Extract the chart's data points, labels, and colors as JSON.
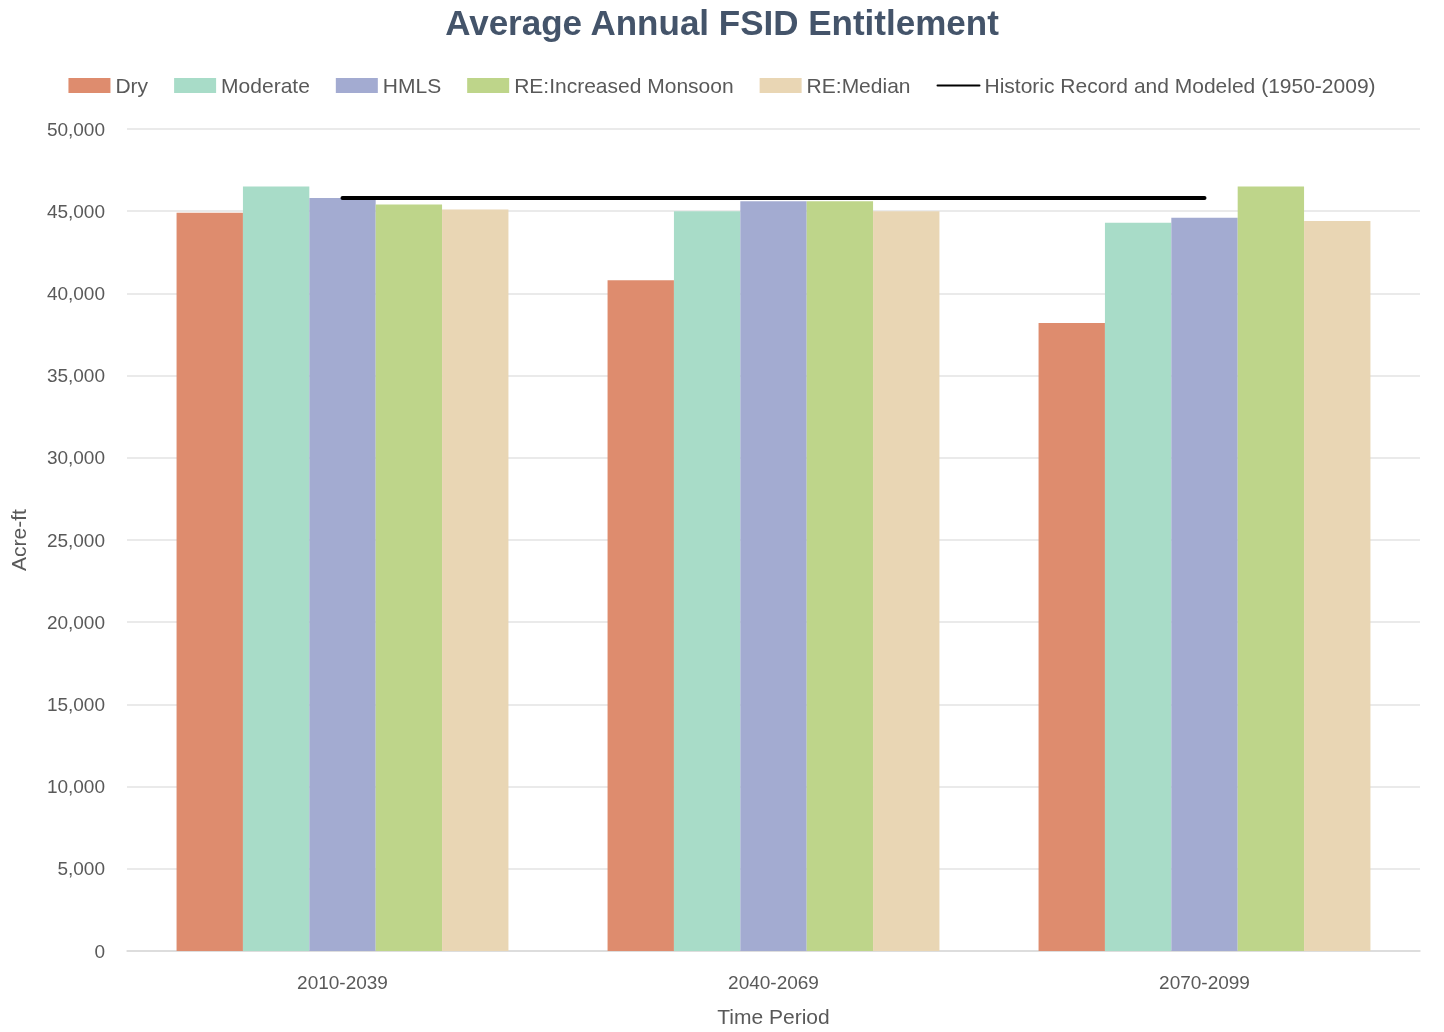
{
  "chart_data": {
    "type": "bar",
    "title": "Average Annual FSID Entitlement",
    "xlabel": "Time Period",
    "ylabel": "Acre-ft",
    "categories": [
      "2010-2039",
      "2040-2069",
      "2070-2099"
    ],
    "series": [
      {
        "name": "Dry",
        "color": "#de8c6e",
        "values": [
          44900,
          40800,
          38200
        ]
      },
      {
        "name": "Moderate",
        "color": "#a8dcc8",
        "values": [
          46500,
          45000,
          44300
        ]
      },
      {
        "name": "HMLS",
        "color": "#a3abd1",
        "values": [
          45800,
          45600,
          44600
        ]
      },
      {
        "name": "RE:Increased Monsoon",
        "color": "#bed58a",
        "values": [
          45400,
          45600,
          46500
        ]
      },
      {
        "name": "RE:Median",
        "color": "#e9d6b4",
        "values": [
          45100,
          45000,
          44400
        ]
      },
      {
        "name": "Historic Record and Modeled (1950-2009)",
        "type": "line",
        "color": "#000000",
        "values": [
          45800,
          45800,
          45800
        ]
      }
    ],
    "ylim": [
      0,
      50000
    ],
    "yticks": [
      0,
      {
        "value": 5000,
        "label": "5,000"
      },
      {
        "value": 10000,
        "label": "10,000"
      },
      {
        "value": 15000,
        "label": "15,000"
      },
      {
        "value": 20000,
        "label": "20,000"
      },
      {
        "value": 25000,
        "label": "25,000"
      },
      {
        "value": 30000,
        "label": "30,000"
      },
      {
        "value": 35000,
        "label": "35,000"
      },
      {
        "value": 40000,
        "label": "40,000"
      },
      {
        "value": 45000,
        "label": "45,000"
      },
      {
        "value": 50000,
        "label": "50,000"
      }
    ],
    "grid": "y",
    "legend": "top",
    "marker": "none",
    "line_style": "solid"
  }
}
